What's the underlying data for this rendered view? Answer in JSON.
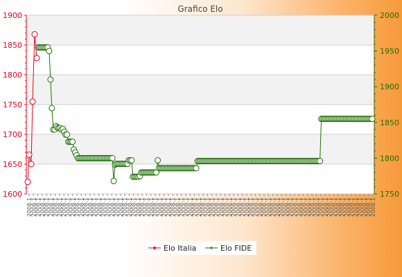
{
  "chart_data": {
    "type": "line",
    "title": "Grafico Elo",
    "xlabel": "",
    "ylabel_left": "",
    "ylabel_right": "",
    "y_left": {
      "min": 1600,
      "max": 1900,
      "ticks": [
        1600,
        1650,
        1700,
        1750,
        1800,
        1850,
        1900
      ],
      "color": "#e8001c"
    },
    "y_right": {
      "min": 1750,
      "max": 2000,
      "ticks": [
        1750,
        1800,
        1850,
        1900,
        1950,
        2000
      ],
      "color": "#1a6e00"
    },
    "grid": true,
    "band_fill": "#f2f2f2",
    "legend_placement": "bottom",
    "x_tick_labels_note": "dense rotated date labels, illegible",
    "series": [
      {
        "name": "Elo Italia",
        "axis": "left",
        "color": "#e8001c",
        "values": [
          1620,
          1666,
          1650,
          1755,
          1868,
          1828
        ]
      },
      {
        "name": "Elo FIDE",
        "axis": "right",
        "color": "#1a6e00",
        "values": [
          1955,
          1955,
          1955,
          1955,
          1955,
          1955,
          1955,
          1955,
          1950,
          1910,
          1870,
          1840,
          1840,
          1845,
          1843,
          1842,
          1842,
          1840,
          1841,
          1837,
          1833,
          1833,
          1823,
          1823,
          1823,
          1823,
          1812,
          1808,
          1804,
          1800,
          1800,
          1800,
          1800,
          1800,
          1800,
          1800,
          1800,
          1800,
          1800,
          1800,
          1800,
          1800,
          1800,
          1800,
          1800,
          1800,
          1800,
          1800,
          1800,
          1800,
          1800,
          1800,
          1800,
          1800,
          1800,
          1768,
          1791,
          1792,
          1792,
          1792,
          1792,
          1792,
          1792,
          1792,
          1792,
          1792,
          1797,
          1797,
          1797,
          1774,
          1774,
          1774,
          1774,
          1774,
          1775,
          1780,
          1780,
          1780,
          1780,
          1780,
          1780,
          1780,
          1780,
          1780,
          1780,
          1780,
          1780,
          1797,
          1786,
          1786,
          1786,
          1786,
          1786,
          1786,
          1786,
          1786,
          1786,
          1786,
          1786,
          1786,
          1786,
          1786,
          1786,
          1786,
          1786,
          1786,
          1786,
          1786,
          1786,
          1786,
          1786,
          1786,
          1786,
          1786,
          1786,
          1786,
          1796,
          1796,
          1796,
          1796,
          1796,
          1796,
          1796,
          1796,
          1796,
          1796,
          1796,
          1796,
          1796,
          1796,
          1796,
          1796,
          1796,
          1796,
          1796,
          1796,
          1796,
          1796,
          1796,
          1796,
          1796,
          1796,
          1796,
          1796,
          1796,
          1796,
          1796,
          1796,
          1796,
          1796,
          1796,
          1796,
          1796,
          1796,
          1796,
          1796,
          1796,
          1796,
          1796,
          1796,
          1796,
          1796,
          1796,
          1796,
          1796,
          1796,
          1796,
          1796,
          1796,
          1796,
          1796,
          1796,
          1796,
          1796,
          1796,
          1796,
          1796,
          1796,
          1796,
          1796,
          1796,
          1796,
          1796,
          1796,
          1796,
          1796,
          1796,
          1796,
          1796,
          1796,
          1796,
          1796,
          1796,
          1796,
          1796,
          1796,
          1796,
          1796,
          1796,
          1796,
          1796,
          1796,
          1796,
          1796,
          1796,
          1796,
          1855,
          1855,
          1855,
          1855,
          1855,
          1855,
          1855,
          1855,
          1855,
          1855,
          1855,
          1855,
          1855,
          1855,
          1855,
          1855,
          1855,
          1855,
          1855,
          1855,
          1855,
          1855,
          1855,
          1855,
          1855,
          1855,
          1855,
          1855,
          1855,
          1855,
          1855,
          1855,
          1855,
          1855,
          1855,
          1855,
          1855,
          1855
        ]
      }
    ]
  }
}
